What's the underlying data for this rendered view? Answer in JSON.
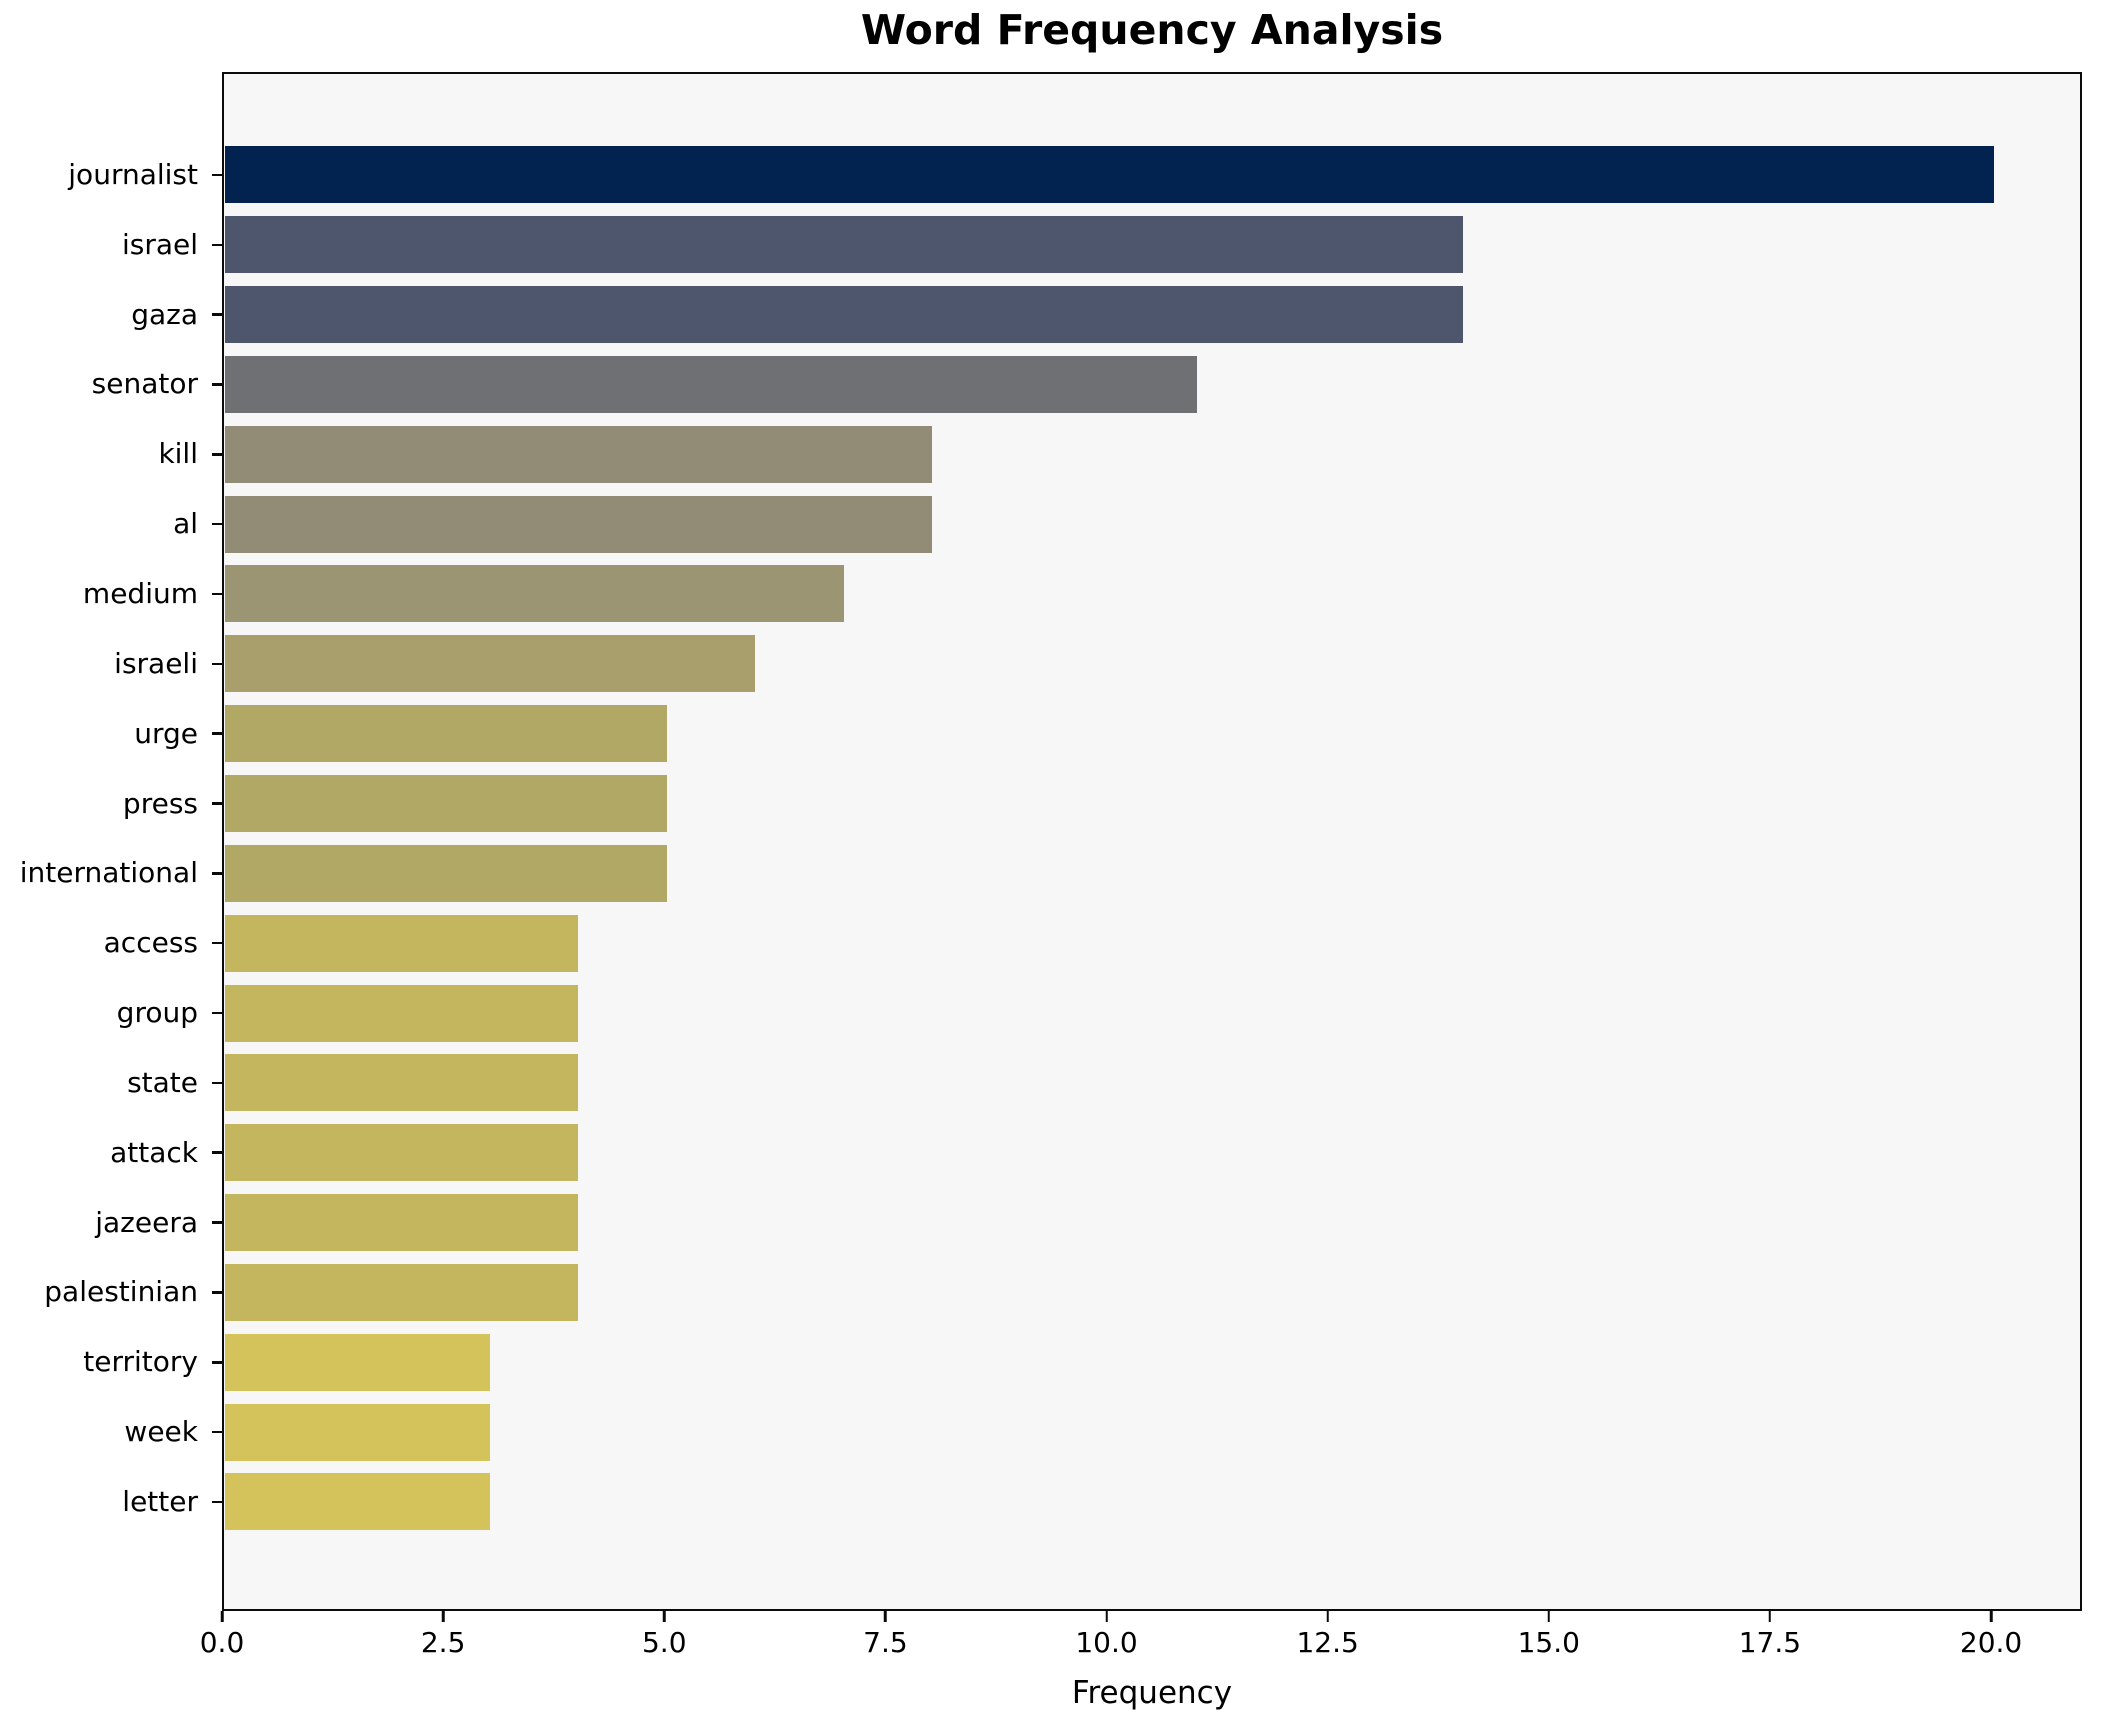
{
  "chart_data": {
    "type": "bar",
    "orientation": "horizontal",
    "title": "Word Frequency Analysis",
    "xlabel": "Frequency",
    "ylabel": "",
    "grid": false,
    "legend": null,
    "xlim": [
      0,
      21
    ],
    "x_ticks": [
      0.0,
      2.5,
      5.0,
      7.5,
      10.0,
      12.5,
      15.0,
      17.5,
      20.0
    ],
    "x_tick_labels": [
      "0.0",
      "2.5",
      "5.0",
      "7.5",
      "10.0",
      "12.5",
      "15.0",
      "17.5",
      "20.0"
    ],
    "categories": [
      "journalist",
      "israel",
      "gaza",
      "senator",
      "kill",
      "al",
      "medium",
      "israeli",
      "urge",
      "press",
      "international",
      "access",
      "group",
      "state",
      "attack",
      "jazeera",
      "palestinian",
      "territory",
      "week",
      "letter"
    ],
    "values": [
      20,
      14,
      14,
      11,
      8,
      8,
      7,
      6,
      5,
      5,
      5,
      4,
      4,
      4,
      4,
      4,
      4,
      3,
      3,
      3
    ],
    "bar_colors": [
      "#02234f",
      "#4d566d",
      "#4d566d",
      "#6f7073",
      "#928c77",
      "#928c77",
      "#9c9574",
      "#a89f6d",
      "#b2a866",
      "#b2a866",
      "#b2a866",
      "#c3b65f",
      "#c3b65f",
      "#c3b65f",
      "#c3b65f",
      "#c3b65f",
      "#c3b65f",
      "#d3c35a",
      "#d3c35a",
      "#d3c35a"
    ],
    "colors": {
      "figure_background": "#ffffff",
      "plot_background": "#f7f7f8",
      "spine": "#0a0a0a",
      "text": "#000000"
    }
  }
}
